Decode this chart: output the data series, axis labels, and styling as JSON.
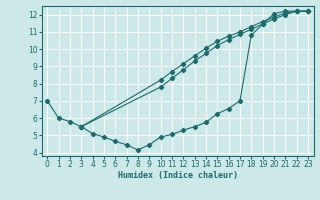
{
  "xlabel": "Humidex (Indice chaleur)",
  "xlim": [
    -0.5,
    23.5
  ],
  "ylim": [
    3.8,
    12.5
  ],
  "xticks": [
    0,
    1,
    2,
    3,
    4,
    5,
    6,
    7,
    8,
    9,
    10,
    11,
    12,
    13,
    14,
    15,
    16,
    17,
    18,
    19,
    20,
    21,
    22,
    23
  ],
  "yticks": [
    4,
    5,
    6,
    7,
    8,
    9,
    10,
    11,
    12
  ],
  "bg_color": "#cce8e8",
  "line_color": "#1a6b6b",
  "grid_color": "#ffffff",
  "curve_x": [
    0,
    1,
    2,
    3,
    4,
    5,
    6,
    7,
    8,
    9,
    10,
    11,
    12,
    13,
    14,
    15,
    16,
    17,
    18,
    19,
    20,
    21,
    22,
    23
  ],
  "curve_y": [
    7.0,
    6.0,
    5.8,
    5.5,
    5.1,
    4.9,
    4.65,
    4.45,
    4.15,
    4.45,
    4.9,
    5.05,
    5.3,
    5.5,
    5.75,
    6.25,
    6.55,
    7.0,
    10.8,
    11.45,
    12.05,
    12.2,
    12.2,
    12.2
  ],
  "diag1_x": [
    3,
    10,
    11,
    12,
    13,
    14,
    15,
    16,
    17,
    18,
    19,
    20,
    21,
    22,
    23
  ],
  "diag1_y": [
    5.5,
    8.2,
    8.7,
    9.15,
    9.6,
    10.05,
    10.45,
    10.75,
    11.0,
    11.3,
    11.6,
    11.85,
    12.1,
    12.2,
    12.2
  ],
  "diag2_x": [
    3,
    10,
    11,
    12,
    13,
    14,
    15,
    16,
    17,
    18,
    19,
    20,
    21,
    22,
    23
  ],
  "diag2_y": [
    5.5,
    7.8,
    8.3,
    8.8,
    9.3,
    9.75,
    10.2,
    10.55,
    10.85,
    11.15,
    11.45,
    11.75,
    12.0,
    12.2,
    12.2
  ]
}
